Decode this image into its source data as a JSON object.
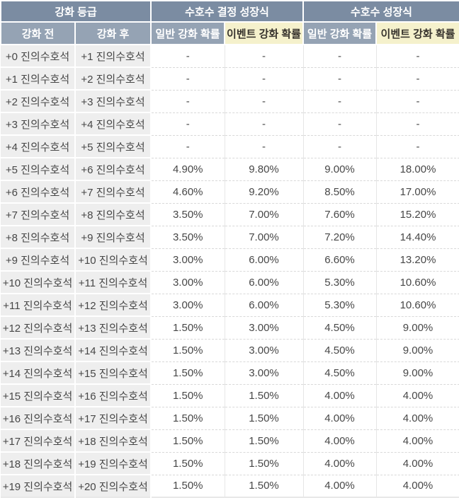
{
  "table": {
    "header_groups": [
      {
        "label": "강화 등급"
      },
      {
        "label": "수호수 결정 성장식"
      },
      {
        "label": "수호수 성장식"
      }
    ],
    "columns": [
      {
        "label": "강화 전",
        "style": "slate"
      },
      {
        "label": "강화 후",
        "style": "slate"
      },
      {
        "label": "일반 강화 확률",
        "style": "slate"
      },
      {
        "label": "이벤트 강화 확률",
        "style": "event"
      },
      {
        "label": "일반 강화 확률",
        "style": "slate"
      },
      {
        "label": "이벤트 강화 확률",
        "style": "event"
      }
    ],
    "rows": [
      [
        "+0 진의수호석",
        "+1 진의수호석",
        "-",
        "-",
        "-",
        "-"
      ],
      [
        "+1 진의수호석",
        "+2 진의수호석",
        "-",
        "-",
        "-",
        "-"
      ],
      [
        "+2 진의수호석",
        "+3 진의수호석",
        "-",
        "-",
        "-",
        "-"
      ],
      [
        "+3 진의수호석",
        "+4 진의수호석",
        "-",
        "-",
        "-",
        "-"
      ],
      [
        "+4 진의수호석",
        "+5 진의수호석",
        "-",
        "-",
        "-",
        "-"
      ],
      [
        "+5 진의수호석",
        "+6 진의수호석",
        "4.90%",
        "9.80%",
        "9.00%",
        "18.00%"
      ],
      [
        "+6 진의수호석",
        "+7 진의수호석",
        "4.60%",
        "9.20%",
        "8.50%",
        "17.00%"
      ],
      [
        "+7 진의수호석",
        "+8 진의수호석",
        "3.50%",
        "7.00%",
        "7.60%",
        "15.20%"
      ],
      [
        "+8 진의수호석",
        "+9 진의수호석",
        "3.50%",
        "7.00%",
        "7.20%",
        "14.40%"
      ],
      [
        "+9 진의수호석",
        "+10 진의수호석",
        "3.00%",
        "6.00%",
        "6.60%",
        "13.20%"
      ],
      [
        "+10 진의수호석",
        "+11 진의수호석",
        "3.00%",
        "6.00%",
        "5.30%",
        "10.60%"
      ],
      [
        "+11 진의수호석",
        "+12 진의수호석",
        "3.00%",
        "6.00%",
        "5.30%",
        "10.60%"
      ],
      [
        "+12 진의수호석",
        "+13 진의수호석",
        "1.50%",
        "3.00%",
        "4.50%",
        "9.00%"
      ],
      [
        "+13 진의수호석",
        "+14 진의수호석",
        "1.50%",
        "3.00%",
        "4.50%",
        "9.00%"
      ],
      [
        "+14 진의수호석",
        "+15 진의수호석",
        "1.50%",
        "3.00%",
        "4.50%",
        "9.00%"
      ],
      [
        "+15 진의수호석",
        "+16 진의수호석",
        "1.50%",
        "1.50%",
        "4.00%",
        "4.00%"
      ],
      [
        "+16 진의수호석",
        "+17 진의수호석",
        "1.50%",
        "1.50%",
        "4.00%",
        "4.00%"
      ],
      [
        "+17 진의수호석",
        "+18 진의수호석",
        "1.50%",
        "1.50%",
        "4.00%",
        "4.00%"
      ],
      [
        "+18 진의수호석",
        "+19 진의수호석",
        "1.50%",
        "1.50%",
        "4.00%",
        "4.00%"
      ],
      [
        "+19 진의수호석",
        "+20 진의수호석",
        "1.50%",
        "1.50%",
        "4.00%",
        "4.00%"
      ]
    ]
  },
  "colors": {
    "header_primary": "#7b8ca2",
    "header_secondary": "#95a3b4",
    "header_event": "#f5f1cc",
    "row_label_bg": "#eeeeee",
    "border": "#e6e6e6",
    "text_dark": "#474747",
    "text_light": "#ffffff"
  }
}
